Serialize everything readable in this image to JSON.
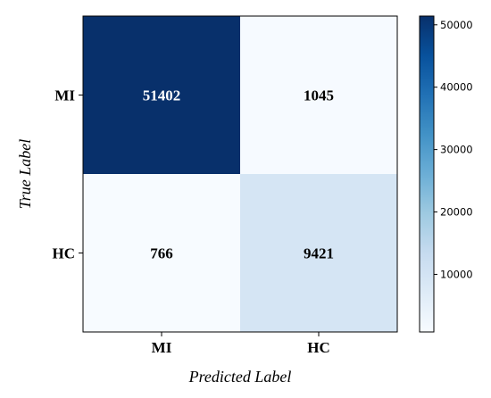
{
  "chart_data": {
    "type": "heatmap",
    "x_categories": [
      "MI",
      "HC"
    ],
    "y_categories": [
      "MI",
      "HC"
    ],
    "matrix": [
      [
        51402,
        1045
      ],
      [
        766,
        9421
      ]
    ],
    "xlabel": "Predicted Label",
    "ylabel": "True Label",
    "colorbar": {
      "range": [
        766,
        51402
      ],
      "ticks": [
        10000,
        20000,
        30000,
        40000,
        50000
      ],
      "tick_labels": [
        "10000",
        "20000",
        "30000",
        "40000",
        "50000"
      ]
    },
    "colormap": "Blues",
    "colors": {
      "low": "#f7fbff",
      "high": "#08306b"
    },
    "grid": false
  }
}
